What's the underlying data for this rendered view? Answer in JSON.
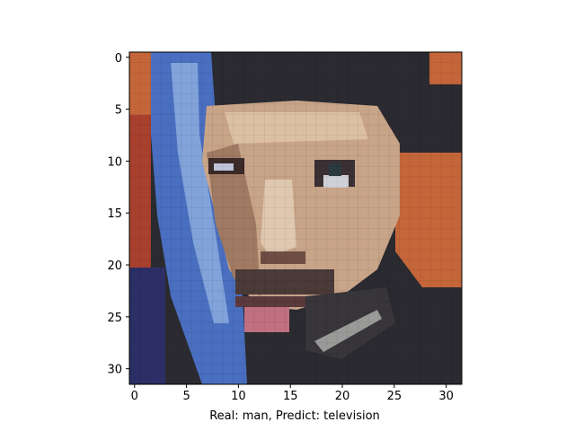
{
  "axes": {
    "x_ticks": [
      "0",
      "5",
      "10",
      "15",
      "20",
      "25",
      "30"
    ],
    "y_ticks": [
      "0",
      "5",
      "10",
      "15",
      "20",
      "25",
      "30"
    ]
  },
  "caption": "Real: man, Predict: television",
  "image": {
    "content": "pixelated face",
    "colors": {
      "dark_background": "#2a2a30",
      "skin_light": "#c8a488",
      "skin_mid": "#a07a62",
      "skin_shadow": "#6e4e44",
      "blue_left": "#4a6fc0",
      "blue_light": "#8fb0e0",
      "orange_right": "#c4663a",
      "red_left": "#a8402e",
      "lips": "#c07080",
      "navy_bottom": "#2c2f66"
    }
  }
}
